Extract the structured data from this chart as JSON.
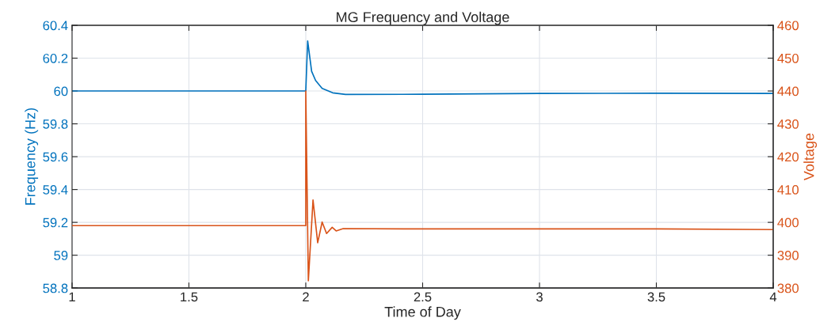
{
  "chart_data": {
    "type": "line",
    "title": "MG Frequency and Voltage",
    "xlabel": "Time of Day",
    "ylabel": "Frequency (Hz)",
    "y2label": "Voltage",
    "series": [
      {
        "color": "#0072bd",
        "x": [
          1,
          2,
          2.008,
          2.025,
          2.042,
          2.07,
          2.115,
          2.17,
          2.5,
          3,
          3.5,
          4
        ],
        "values": [
          60,
          60,
          60.305,
          60.12,
          60.064,
          60.016,
          59.989,
          59.979,
          59.98,
          59.985,
          59.986,
          59.985
        ]
      },
      {
        "color": "#d95319",
        "axis": "y2",
        "x": [
          1,
          2,
          2,
          2.011,
          2.031,
          2.051,
          2.07,
          2.089,
          2.113,
          2.13,
          2.16,
          2.5,
          3,
          3.5,
          4
        ],
        "values": [
          399,
          399,
          440,
          382.2,
          406.8,
          393.8,
          400.1,
          396.6,
          398.5,
          397.4,
          398.1,
          398,
          398,
          398,
          397.8
        ]
      }
    ],
    "xlim": [
      1,
      4
    ],
    "xticks": [
      1,
      1.5,
      2,
      2.5,
      3,
      3.5,
      4
    ],
    "ylim": [
      58.8,
      60.4
    ],
    "yticks": [
      58.8,
      59,
      59.2,
      59.4,
      59.6,
      59.8,
      60,
      60.2,
      60.4
    ],
    "y2lim": [
      380,
      460
    ],
    "y2ticks": [
      380,
      390,
      400,
      410,
      420,
      430,
      440,
      450,
      460
    ],
    "grid": true,
    "line_style": "solid"
  }
}
